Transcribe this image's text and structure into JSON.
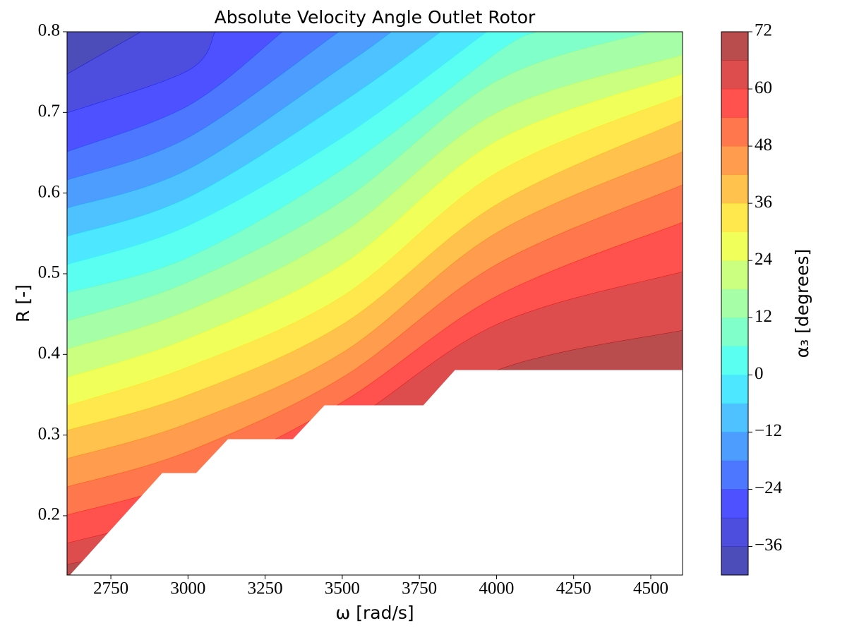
{
  "chart_data": {
    "type": "contourf",
    "title": "Absolute Velocity Angle Outlet Rotor",
    "x_label": "ω [rad/s]",
    "y_label": "R [-]",
    "colorbar_label": "α₃ [degrees]",
    "colormap": "jet",
    "alpha": 0.7,
    "xlim": [
      2608,
      4603
    ],
    "ylim": [
      0.1265,
      0.8
    ],
    "xticks": [
      2750,
      3000,
      3250,
      3500,
      3750,
      4000,
      4250,
      4500
    ],
    "yticks": [
      0.2,
      0.3,
      0.4,
      0.5,
      0.6,
      0.7,
      0.8
    ],
    "levels": [
      -42,
      -36,
      -30,
      -24,
      -18,
      -12,
      -6,
      0,
      6,
      12,
      18,
      24,
      30,
      36,
      42,
      48,
      54,
      60,
      66,
      72
    ],
    "cbar_ticks": [
      {
        "value": -36,
        "label": "−36"
      },
      {
        "value": -24,
        "label": "−24"
      },
      {
        "value": -12,
        "label": "−12"
      },
      0,
      12,
      24,
      36,
      48,
      60,
      72
    ],
    "contours": [
      {
        "x": [
          2608,
          2848
        ],
        "y": [
          0.7475,
          0.8
        ]
      },
      {
        "x": [
          2608,
          3000,
          3088
        ],
        "y": [
          0.6994,
          0.7519,
          0.8
        ]
      },
      {
        "x": [
          2608,
          3000,
          3306
        ],
        "y": [
          0.6513,
          0.7082,
          0.8
        ]
      },
      {
        "x": [
          2608,
          3000,
          3489
        ],
        "y": [
          0.6163,
          0.6688,
          0.8
        ]
      },
      {
        "x": [
          2608,
          3000,
          3500,
          3660
        ],
        "y": [
          0.5813,
          0.6294,
          0.7563,
          0.8
        ]
      },
      {
        "x": [
          2608,
          3000,
          3500,
          3820
        ],
        "y": [
          0.5463,
          0.5944,
          0.7125,
          0.8
        ]
      },
      {
        "x": [
          2608,
          3000,
          3500,
          3969
        ],
        "y": [
          0.5113,
          0.5594,
          0.6688,
          0.8
        ]
      },
      {
        "x": [
          2608,
          3000,
          3500,
          4000,
          4129
        ],
        "y": [
          0.4763,
          0.5201,
          0.6294,
          0.7738,
          0.8
        ]
      },
      {
        "x": [
          2608,
          3000,
          3500,
          4000,
          4495
        ],
        "y": [
          0.4413,
          0.4895,
          0.5901,
          0.7388,
          0.8
        ]
      },
      {
        "x": [
          2608,
          3000,
          3500,
          4000,
          4603
        ],
        "y": [
          0.4064,
          0.4545,
          0.5507,
          0.6994,
          0.7711
        ]
      },
      {
        "x": [
          2608,
          3000,
          3500,
          4000,
          4603
        ],
        "y": [
          0.3714,
          0.4195,
          0.5114,
          0.6644,
          0.7475
        ]
      },
      {
        "x": [
          2608,
          3000,
          3500,
          4000,
          4603
        ],
        "y": [
          0.3364,
          0.3845,
          0.472,
          0.6251,
          0.7213
        ]
      },
      {
        "x": [
          2608,
          3000,
          3500,
          4000,
          4603
        ],
        "y": [
          0.3058,
          0.3496,
          0.437,
          0.5857,
          0.6907
        ]
      },
      {
        "x": [
          2608,
          3000,
          3500,
          4000,
          4603
        ],
        "y": [
          0.2708,
          0.3146,
          0.402,
          0.5507,
          0.6513
        ]
      },
      {
        "x": [
          2608,
          3000,
          3500,
          4000,
          4603
        ],
        "y": [
          0.2358,
          0.2796,
          0.3714,
          0.5114,
          0.6102
        ]
      },
      {
        "x": [
          2608,
          3000,
          3500,
          4000,
          4603
        ],
        "y": [
          0.2008,
          0.2446,
          0.3408,
          0.472,
          0.5638
        ]
      },
      {
        "x": [
          2608,
          3000,
          3500,
          4000,
          4603
        ],
        "y": [
          0.1659,
          0.2096,
          0.3102,
          0.437,
          0.5026
        ]
      },
      {
        "x": [
          2608,
          3000,
          3500,
          4000,
          4603
        ],
        "y": [
          0.1396,
          0.1746,
          0.2708,
          0.3802,
          0.43
        ]
      }
    ],
    "mask": {
      "x": [
        2619,
        2917,
        3027,
        3130,
        3340,
        3443,
        3763,
        3866,
        4603,
        4603
      ],
      "y": [
        0.1265,
        0.2525,
        0.2525,
        0.2944,
        0.2944,
        0.3364,
        0.3364,
        0.3802,
        0.3802,
        0.1265
      ]
    }
  }
}
